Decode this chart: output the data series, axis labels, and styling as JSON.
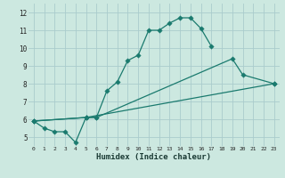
{
  "xlabel": "Humidex (Indice chaleur)",
  "background_color": "#cce8e0",
  "grid_color": "#aacccc",
  "line_color": "#1a7a6e",
  "xlim": [
    -0.5,
    23.5
  ],
  "ylim": [
    4.5,
    12.5
  ],
  "yticks": [
    5,
    6,
    7,
    8,
    9,
    10,
    11,
    12
  ],
  "xticks": [
    0,
    1,
    2,
    3,
    4,
    5,
    6,
    7,
    8,
    9,
    10,
    11,
    12,
    13,
    14,
    15,
    16,
    17,
    18,
    19,
    20,
    21,
    22,
    23
  ],
  "line1_x": [
    0,
    1,
    2,
    3,
    4,
    5,
    6,
    7,
    8,
    9,
    10,
    11,
    12,
    13,
    14,
    15,
    16,
    17
  ],
  "line1_y": [
    5.9,
    5.5,
    5.3,
    5.3,
    4.7,
    6.1,
    6.1,
    7.6,
    8.1,
    9.3,
    9.6,
    11.0,
    11.0,
    11.4,
    11.7,
    11.7,
    11.1,
    10.1
  ],
  "line2_x": [
    0,
    5,
    23
  ],
  "line2_y": [
    5.9,
    6.1,
    8.0
  ],
  "line3_x": [
    0,
    5,
    6,
    19,
    20,
    23
  ],
  "line3_y": [
    5.9,
    6.1,
    6.1,
    9.4,
    8.5,
    8.0
  ]
}
